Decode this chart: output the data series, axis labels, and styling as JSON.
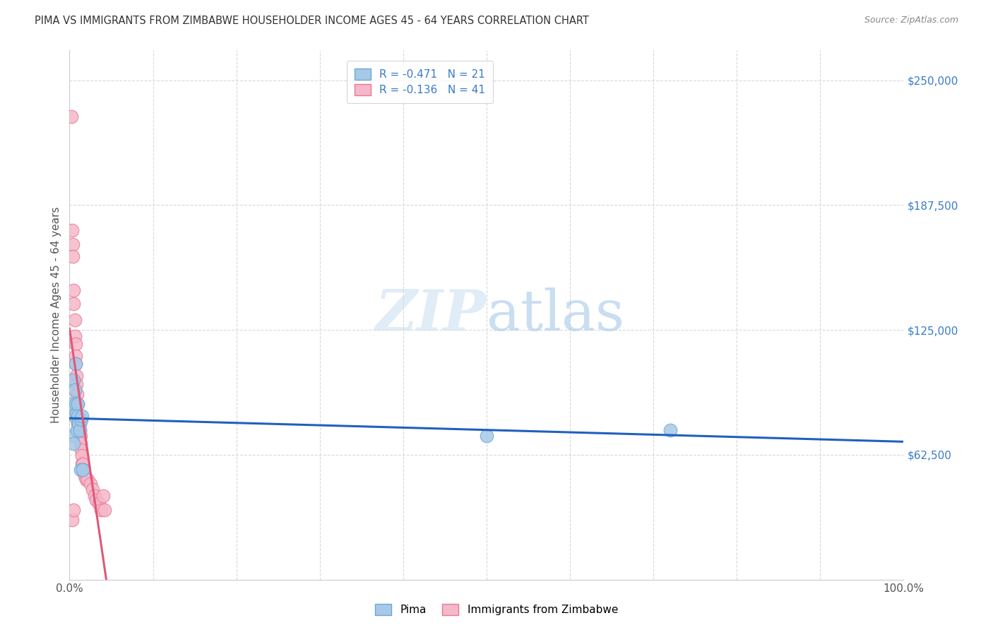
{
  "title": "PIMA VS IMMIGRANTS FROM ZIMBABWE HOUSEHOLDER INCOME AGES 45 - 64 YEARS CORRELATION CHART",
  "source": "Source: ZipAtlas.com",
  "ylabel": "Householder Income Ages 45 - 64 years",
  "xlim": [
    0,
    1
  ],
  "ylim": [
    0,
    265000
  ],
  "yticks": [
    0,
    62500,
    125000,
    187500,
    250000
  ],
  "ytick_labels_right": [
    "",
    "$62,500",
    "$125,000",
    "$187,500",
    "$250,000"
  ],
  "xticks_major": [
    0,
    1
  ],
  "xtick_labels": [
    "0.0%",
    "100.0%"
  ],
  "xticks_minor": [
    0.1,
    0.2,
    0.3,
    0.4,
    0.5,
    0.6,
    0.7,
    0.8,
    0.9
  ],
  "grid_color": "#d8d8d8",
  "background_color": "#ffffff",
  "watermark_text": "ZIPatlas",
  "legend_pima_label": "R = -0.471   N = 21",
  "legend_zimb_label": "R = -0.136   N = 41",
  "pima_color": "#a8c8e8",
  "pima_edge": "#6aaad4",
  "zimb_color": "#f5b8c8",
  "zimb_edge": "#e87898",
  "pima_line_color": "#2060c0",
  "zimb_line_color": "#e05878",
  "dash_color": "#d0b8c0",
  "pima_x": [
    0.003,
    0.004,
    0.005,
    0.005,
    0.006,
    0.006,
    0.007,
    0.007,
    0.008,
    0.009,
    0.009,
    0.01,
    0.01,
    0.011,
    0.012,
    0.013,
    0.014,
    0.015,
    0.016,
    0.5,
    0.72
  ],
  "pima_y": [
    88000,
    72000,
    68000,
    100000,
    95000,
    82000,
    108000,
    88000,
    83000,
    80000,
    75000,
    88000,
    82000,
    78000,
    75000,
    55000,
    80000,
    82000,
    55000,
    72000,
    75000
  ],
  "zimb_x": [
    0.002,
    0.003,
    0.004,
    0.004,
    0.005,
    0.005,
    0.006,
    0.006,
    0.007,
    0.007,
    0.007,
    0.008,
    0.008,
    0.009,
    0.009,
    0.01,
    0.01,
    0.01,
    0.011,
    0.012,
    0.012,
    0.013,
    0.013,
    0.014,
    0.015,
    0.015,
    0.016,
    0.017,
    0.018,
    0.02,
    0.022,
    0.025,
    0.028,
    0.03,
    0.032,
    0.035,
    0.038,
    0.04,
    0.042,
    0.003,
    0.005
  ],
  "zimb_y": [
    232000,
    175000,
    168000,
    162000,
    145000,
    138000,
    130000,
    122000,
    118000,
    112000,
    108000,
    102000,
    98000,
    93000,
    88000,
    88000,
    82000,
    78000,
    80000,
    75000,
    78000,
    72000,
    68000,
    65000,
    62000,
    58000,
    58000,
    55000,
    52000,
    50000,
    50000,
    48000,
    45000,
    42000,
    40000,
    38000,
    35000,
    42000,
    35000,
    30000,
    35000
  ]
}
